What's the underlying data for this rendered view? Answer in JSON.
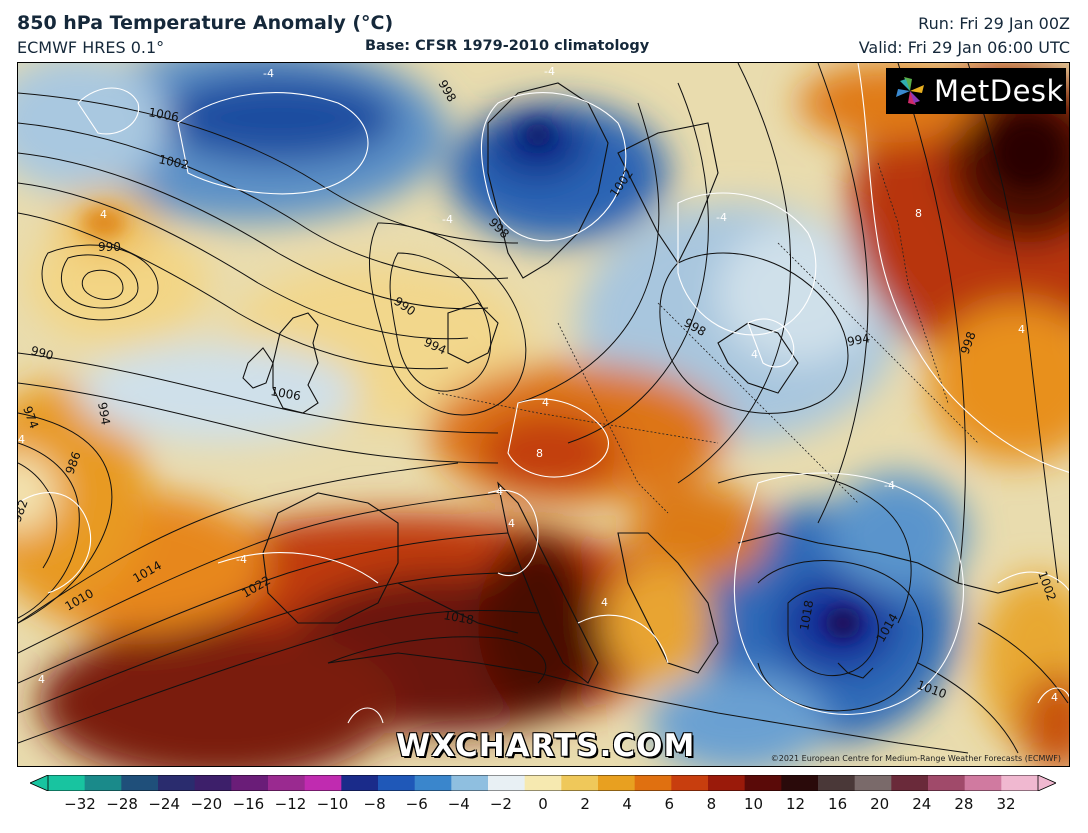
{
  "header": {
    "title": "850 hPa Temperature Anomaly (°C)",
    "model": "ECMWF HRES 0.1°",
    "base": "Base: CFSR 1979-2010 climatology",
    "run": "Run: Fri 29 Jan 00Z",
    "valid": "Valid: Fri 29 Jan 06:00 UTC"
  },
  "logo": {
    "text": "MetDesk"
  },
  "watermark": {
    "text": "WXCHARTS.COM"
  },
  "credit": {
    "text": "©2021 European Centre for Medium-Range Weather Forecasts (ECMWF)"
  },
  "isobar_labels": [
    "998",
    "1006",
    "1002",
    "990",
    "998",
    "1002",
    "998",
    "994",
    "990",
    "994",
    "1006",
    "990",
    "994",
    "998",
    "986",
    "982",
    "974",
    "1014",
    "1010",
    "1022",
    "1018",
    "1018",
    "1014",
    "1010",
    "1002"
  ],
  "anomaly_labels": [
    "-4",
    "-4",
    "-4",
    "-4",
    "4",
    "-4",
    "8",
    "4",
    "4",
    "4",
    "4",
    "8",
    "4",
    "4",
    "-4",
    "4",
    "4",
    "4"
  ],
  "colorbar": {
    "ticks": [
      "−32",
      "−28",
      "−24",
      "−20",
      "−16",
      "−12",
      "−10",
      "−8",
      "−6",
      "−4",
      "−2",
      "0",
      "2",
      "4",
      "6",
      "8",
      "10",
      "12",
      "16",
      "20",
      "24",
      "28",
      "32"
    ],
    "colors": [
      "#18c4a0",
      "#1a8a8a",
      "#1f4f7a",
      "#2a2c6e",
      "#3d1f6a",
      "#6a1d78",
      "#9a2a90",
      "#c02bb0",
      "#1a2b8a",
      "#1f58b8",
      "#3a86cc",
      "#8fbfe0",
      "#e8f0f4",
      "#f6e9b0",
      "#efc85a",
      "#e8a020",
      "#e07010",
      "#c83e0e",
      "#9a1a0a",
      "#5a0a08",
      "#2a0a0a",
      "#4a3838",
      "#7a6a6a",
      "#6a2a3a",
      "#a04a6a",
      "#d07aa0",
      "#f0b8d0"
    ]
  }
}
